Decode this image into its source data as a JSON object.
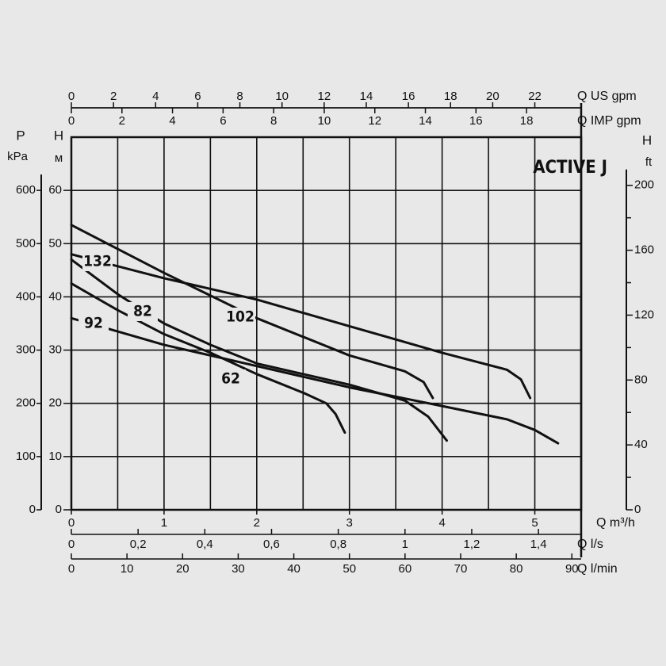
{
  "chart_data": {
    "type": "line",
    "title": "ACTIVE J",
    "xlabel": "Q m³/h",
    "xlim": [
      0,
      5.5
    ],
    "xticks": [
      0,
      1,
      2,
      3,
      4,
      5
    ],
    "xgrid": [
      0,
      0.5,
      1,
      1.5,
      2,
      2.5,
      3,
      3.5,
      4,
      4.5,
      5,
      5.5
    ],
    "ylabel": "H",
    "yunit": "м",
    "ylim": [
      0,
      70
    ],
    "yticks": [
      0,
      10,
      20,
      30,
      40,
      50,
      60
    ],
    "grid": true,
    "pressure_axis": {
      "label": "P",
      "unit": "kPa",
      "lim": [
        0,
        700
      ],
      "ticks": [
        0,
        100,
        200,
        300,
        400,
        500,
        600
      ]
    },
    "feet_axis": {
      "label": "H",
      "unit": "ft",
      "lim": [
        0,
        229.7
      ],
      "ticks": [
        0,
        40,
        80,
        120,
        160,
        200
      ],
      "minor_ticks": [
        20,
        60,
        100,
        140,
        180
      ]
    },
    "us_gpm_axis": {
      "label": "Q US gpm",
      "lim": [
        0,
        24.2
      ],
      "ticks": [
        0,
        2,
        4,
        6,
        8,
        10,
        12,
        14,
        16,
        18,
        20,
        22
      ]
    },
    "imp_gpm_axis": {
      "label": "Q IMP gpm",
      "lim": [
        0,
        20.16
      ],
      "ticks": [
        0,
        2,
        4,
        6,
        8,
        10,
        12,
        14,
        16,
        18
      ]
    },
    "ls_axis": {
      "label": "Q l/s",
      "lim": [
        0,
        1.528
      ],
      "ticks": [
        0,
        {
          "value": 0.2,
          "label": "0,2"
        },
        {
          "value": 0.4,
          "label": "0,4"
        },
        {
          "value": 0.6,
          "label": "0,6"
        },
        {
          "value": 0.8,
          "label": "0,8"
        },
        1,
        {
          "value": 1.2,
          "label": "1,2"
        },
        {
          "value": 1.4,
          "label": "1,4"
        }
      ]
    },
    "lmin_axis": {
      "label": "Q l/min",
      "lim": [
        0,
        91.67
      ],
      "ticks": [
        0,
        10,
        20,
        30,
        40,
        50,
        60,
        70,
        80,
        90
      ]
    },
    "series": [
      {
        "name": "132",
        "color": "#111111",
        "x": [
          0,
          1,
          2,
          3,
          4,
          4.7,
          4.85,
          4.95
        ],
        "values": [
          48,
          43.5,
          39.5,
          34.5,
          29.5,
          26.3,
          24.5,
          21
        ]
      },
      {
        "name": "102",
        "color": "#111111",
        "x": [
          0,
          1,
          2,
          3,
          3.6,
          3.8,
          3.9
        ],
        "values": [
          53.5,
          44.5,
          36,
          29,
          26,
          24,
          21
        ]
      },
      {
        "name": "82",
        "color": "#111111",
        "x": [
          0,
          0.5,
          1,
          1.5,
          2,
          3,
          3.6,
          3.85,
          4.05
        ],
        "values": [
          47,
          40.5,
          35,
          31,
          27.5,
          23.5,
          20.5,
          17.5,
          13
        ]
      },
      {
        "name": "92",
        "color": "#111111",
        "x": [
          0,
          0.5,
          1,
          2,
          3,
          4,
          4.7,
          5,
          5.25
        ],
        "values": [
          36,
          33.5,
          31,
          27,
          23,
          19.5,
          17,
          15,
          12.5
        ]
      },
      {
        "name": "62",
        "color": "#111111",
        "x": [
          0,
          0.5,
          1,
          1.5,
          2,
          2.5,
          2.75,
          2.85,
          2.95
        ],
        "values": [
          42.5,
          37.5,
          33,
          29.5,
          25.5,
          22,
          20,
          18,
          14.5
        ]
      }
    ]
  }
}
